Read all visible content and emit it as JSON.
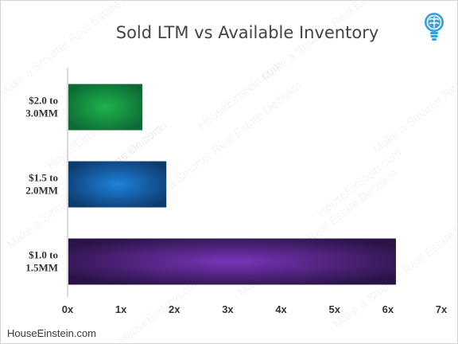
{
  "header": {
    "title": "Sold LTM vs Available Inventory",
    "logo_icon": "lightbulb-brain-icon"
  },
  "footer": {
    "text": "HouseEinstein.com"
  },
  "watermark": {
    "phrases": [
      "Make a Smarter Real Estate Decision",
      "HouseEinstein.com"
    ]
  },
  "chart_data": {
    "type": "bar",
    "orientation": "horizontal",
    "title": "Sold LTM vs Available Inventory",
    "categories": [
      {
        "line1": "$2.0 to",
        "line2": "3.0MM"
      },
      {
        "line1": "$1.5 to",
        "line2": "2.0MM"
      },
      {
        "line1": "$1.0 to",
        "line2": "1.5MM"
      }
    ],
    "values": [
      1.4,
      1.85,
      6.15
    ],
    "colors": [
      {
        "center": "#1eb34c",
        "edge": "#0d6a35"
      },
      {
        "center": "#1f82dc",
        "edge": "#0d3b6e"
      },
      {
        "center": "#7935b8",
        "edge": "#2a1347"
      }
    ],
    "xlim": [
      0,
      7
    ],
    "xticks": [
      "0x",
      "1x",
      "2x",
      "3x",
      "4x",
      "5x",
      "6x",
      "7x"
    ],
    "xlabel": "",
    "ylabel": "",
    "grid": false,
    "legend": "none"
  }
}
